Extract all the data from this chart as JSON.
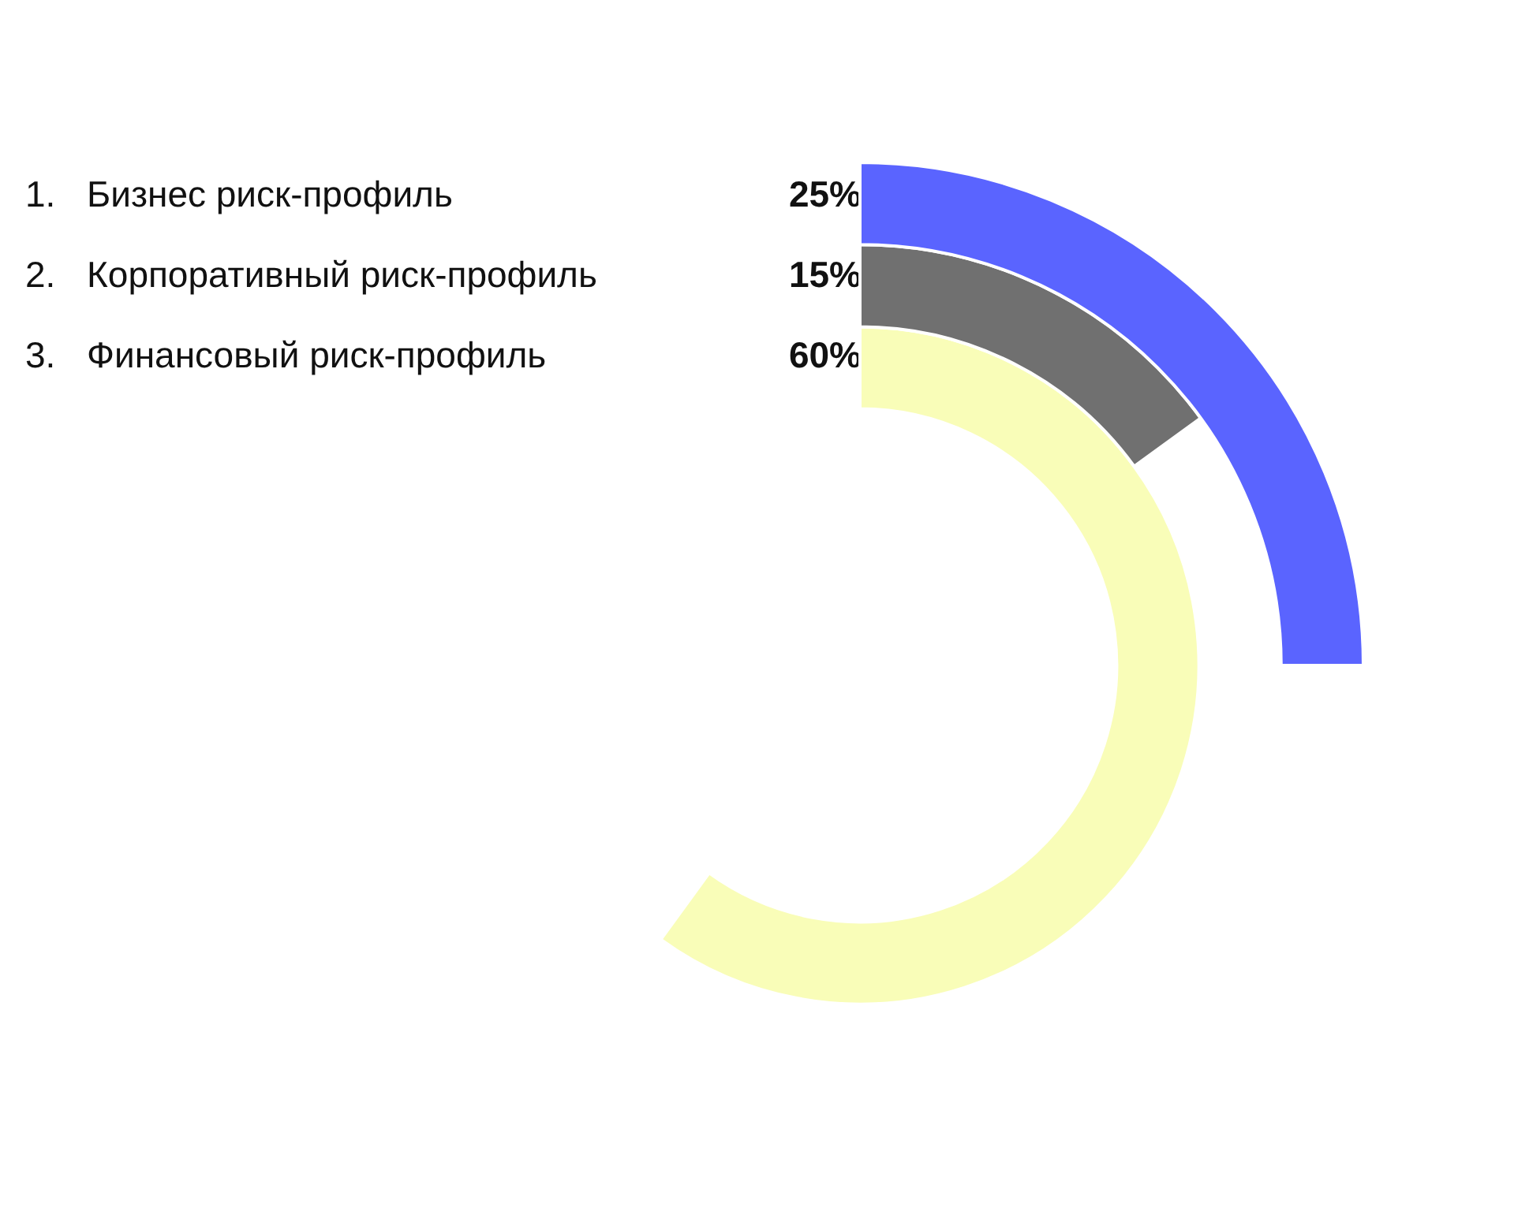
{
  "chart_data": {
    "type": "other",
    "categories": [
      "1. Бизнес риск-профиль",
      "2. Корпоративный риск-профиль",
      "3. Финансовый риск-профиль"
    ],
    "values": [
      25,
      15,
      60
    ],
    "value_labels": [
      "25%",
      "15%",
      "60%"
    ],
    "colors": [
      "#5a64ff",
      "#707070",
      "#f9fdb8"
    ]
  }
}
